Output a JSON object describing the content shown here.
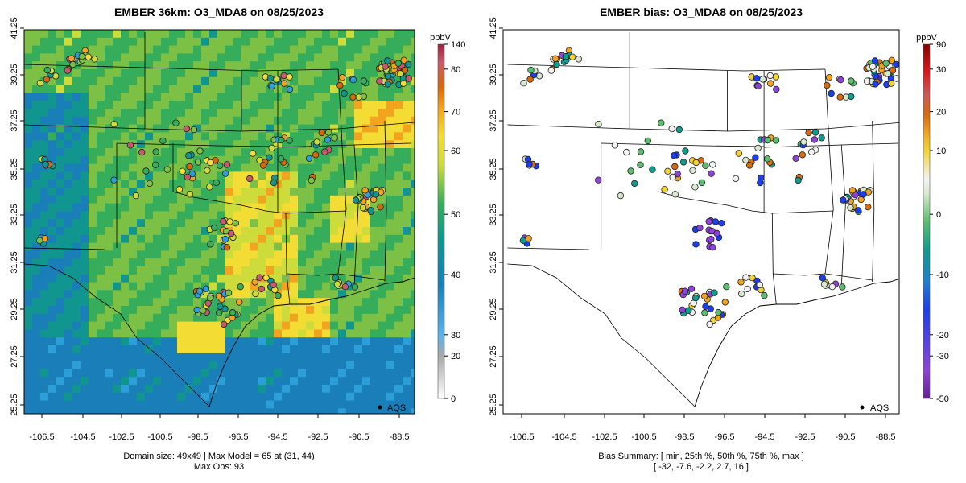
{
  "colors": {
    "frame": "#000000",
    "boundary": "#000000",
    "grey_ramp": [
      "#ffffff",
      "#a8a8a8"
    ],
    "conc_ramp": [
      "#2c9fd8",
      "#1a7fb8",
      "#10968f",
      "#36ad5b",
      "#7cc146",
      "#cddc3b",
      "#f3dc33",
      "#f2a31f",
      "#d4690a",
      "#c55a6d",
      "#9e1f3e"
    ],
    "bias_ramp": [
      "#6a1b9a",
      "#8e44d8",
      "#1a3ff0",
      "#1f7fd0",
      "#0f9d8e",
      "#5cbf6e",
      "#d9e9cf",
      "#f2f2f2",
      "#f3d335",
      "#f0a323",
      "#d86c0c",
      "#cc5a5a",
      "#e01818",
      "#8b0000"
    ]
  },
  "lat_ticks": [
    "25.25",
    "27.25",
    "29.25",
    "31.25",
    "33.25",
    "35.25",
    "37.25",
    "39.25",
    "41.25"
  ],
  "lon_ticks": [
    "-106.5",
    "-104.5",
    "-102.5",
    "-100.5",
    "-98.5",
    "-96.5",
    "-94.5",
    "-92.5",
    "-90.5",
    "-88.5"
  ],
  "left": {
    "title": "EMBER 36km: O3_MDA8 on 08/25/2023",
    "caption1": "Domain size: 49x49 | Max Model = 65 at (31, 44)",
    "caption2": "Max Obs: 93",
    "colorbar": {
      "unit": "ppbV",
      "labels": [
        "0",
        "20",
        "30",
        "40",
        "50",
        "60",
        "70",
        "80",
        "140"
      ]
    },
    "legend": "AQS"
  },
  "right": {
    "title": "EMBER bias: O3_MDA8 on 08/25/2023",
    "caption1": "Bias Summary: [ min, 25th %, 50th %, 75th %, max ]",
    "caption2": "[ -32,   -7.6,   -2.2,   2.7,   16 ]",
    "colorbar": {
      "unit": "ppbV",
      "labels": [
        "-50",
        "-30",
        "-20",
        "-10",
        "0",
        "10",
        "20",
        "30",
        "90"
      ]
    },
    "legend": "AQS"
  }
}
